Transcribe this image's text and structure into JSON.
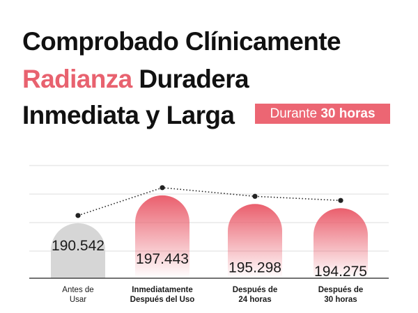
{
  "headline": {
    "line1": "Comprobado Clínicamente",
    "line2_accent": "Radianza",
    "line2_rest": "Duradera",
    "line3": "Inmediata y Larga"
  },
  "badge": {
    "prefix": "Durante",
    "emphasis": "30 horas"
  },
  "colors": {
    "accent": "#e8626f",
    "badge": "#ec6673",
    "baseline_bar": "#d6d6d6",
    "dot": "#222222"
  },
  "chart_data": {
    "type": "bar",
    "title": "",
    "categories": [
      [
        "Antes de",
        "Usar"
      ],
      [
        "Inmediatamente",
        "Después del Uso"
      ],
      [
        "Después de",
        "24 horas"
      ],
      [
        "Después de",
        "30 horas"
      ]
    ],
    "values": [
      190.542,
      197.443,
      195.298,
      194.275
    ],
    "labels": [
      "190.542",
      "197.443",
      "195.298",
      "194.275"
    ],
    "ylim": [
      180,
      200
    ],
    "grid": true,
    "trend_line": true
  }
}
